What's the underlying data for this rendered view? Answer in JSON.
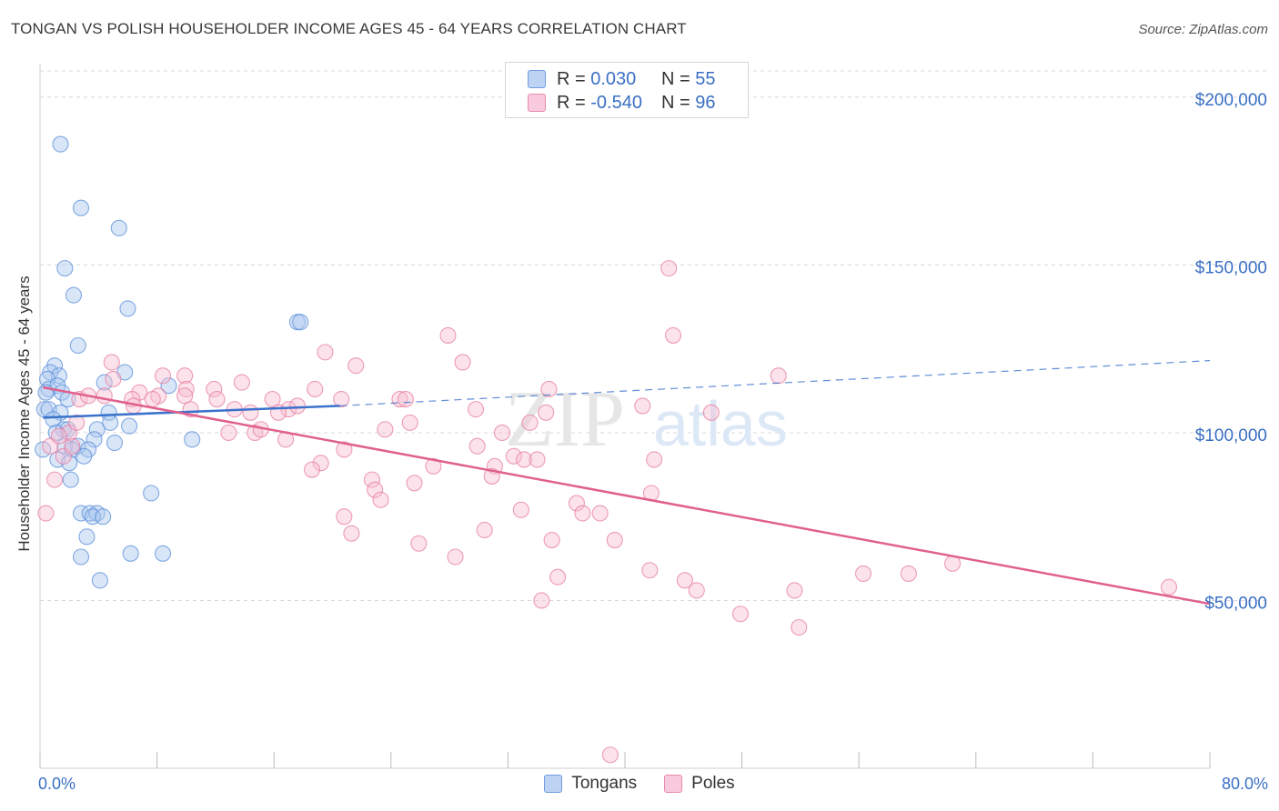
{
  "title": "TONGAN VS POLISH HOUSEHOLDER INCOME AGES 45 - 64 YEARS CORRELATION CHART",
  "source": "Source: ZipAtlas.com",
  "watermark": {
    "zip": "ZIP",
    "atlas": "atlas"
  },
  "legend_top": [
    {
      "r_label": "R =",
      "r_value": "0.030",
      "n_label": "N =",
      "n_value": "55"
    },
    {
      "r_label": "R =",
      "r_value": "-0.540",
      "n_label": "N =",
      "n_value": "96"
    }
  ],
  "colors": {
    "tongans_fill": "#aac8f0",
    "tongans_stroke": "#5b8fd8",
    "tongans_line": "#3a72cc",
    "poles_fill": "#f6bfd2",
    "poles_stroke": "#e77ea2",
    "poles_line": "#e0608e",
    "axis_label": "#3a6fc4",
    "grid": "#d8d8d8"
  },
  "chart_data": {
    "type": "scatter",
    "title": "TONGAN VS POLISH HOUSEHOLDER INCOME AGES 45 - 64 YEARS CORRELATION CHART",
    "xlabel": "",
    "ylabel": "Householder Income Ages 45 - 64 years",
    "xlim": [
      0,
      80
    ],
    "ylim": [
      0,
      210000
    ],
    "x_tick_labels": [
      "0.0%",
      "80.0%"
    ],
    "y_ticks": [
      50000,
      100000,
      150000,
      200000
    ],
    "y_tick_labels": [
      "$50,000",
      "$100,000",
      "$150,000",
      "$200,000"
    ],
    "grid": true,
    "legend_position": "bottom",
    "series": [
      {
        "name": "Tongans",
        "trend": {
          "x": [
            0.2,
            20.5
          ],
          "y": [
            104500,
            108000
          ],
          "dashed_to": [
            80,
            121500
          ]
        },
        "points": [
          [
            1.4,
            186000
          ],
          [
            2.8,
            167000
          ],
          [
            5.4,
            161000
          ],
          [
            1.7,
            149000
          ],
          [
            2.3,
            141000
          ],
          [
            6.0,
            137000
          ],
          [
            17.6,
            133000
          ],
          [
            17.8,
            133000
          ],
          [
            2.6,
            126000
          ],
          [
            1.0,
            120000
          ],
          [
            0.7,
            118000
          ],
          [
            1.3,
            117000
          ],
          [
            5.8,
            118000
          ],
          [
            0.5,
            116000
          ],
          [
            4.4,
            115000
          ],
          [
            0.6,
            113000
          ],
          [
            1.2,
            114000
          ],
          [
            1.5,
            112000
          ],
          [
            8.8,
            114000
          ],
          [
            1.9,
            110000
          ],
          [
            0.3,
            107000
          ],
          [
            0.6,
            107000
          ],
          [
            1.4,
            106000
          ],
          [
            4.7,
            106000
          ],
          [
            4.8,
            103000
          ],
          [
            6.1,
            102000
          ],
          [
            1.6,
            101000
          ],
          [
            1.9,
            101000
          ],
          [
            3.9,
            101000
          ],
          [
            3.7,
            98000
          ],
          [
            10.4,
            98000
          ],
          [
            5.1,
            97000
          ],
          [
            1.7,
            96000
          ],
          [
            2.6,
            96000
          ],
          [
            2.2,
            95000
          ],
          [
            3.3,
            95000
          ],
          [
            0.2,
            95000
          ],
          [
            1.2,
            92000
          ],
          [
            2.0,
            91000
          ],
          [
            2.1,
            86000
          ],
          [
            7.6,
            82000
          ],
          [
            2.8,
            76000
          ],
          [
            3.4,
            76000
          ],
          [
            3.9,
            76000
          ],
          [
            3.6,
            75000
          ],
          [
            4.3,
            75000
          ],
          [
            3.2,
            69000
          ],
          [
            6.2,
            64000
          ],
          [
            8.4,
            64000
          ],
          [
            2.8,
            63000
          ],
          [
            4.1,
            56000
          ],
          [
            0.4,
            112000
          ],
          [
            0.9,
            104000
          ],
          [
            1.1,
            100000
          ],
          [
            3.0,
            93000
          ]
        ]
      },
      {
        "name": "Poles",
        "trend": {
          "x": [
            0.2,
            80
          ],
          "y": [
            113500,
            49000
          ]
        },
        "points": [
          [
            43.0,
            149000
          ],
          [
            43.3,
            129000
          ],
          [
            27.9,
            129000
          ],
          [
            19.5,
            124000
          ],
          [
            28.9,
            121000
          ],
          [
            21.6,
            120000
          ],
          [
            4.9,
            121000
          ],
          [
            8.4,
            117000
          ],
          [
            9.9,
            117000
          ],
          [
            50.5,
            117000
          ],
          [
            5.0,
            116000
          ],
          [
            13.8,
            115000
          ],
          [
            10.0,
            113000
          ],
          [
            11.9,
            113000
          ],
          [
            18.8,
            113000
          ],
          [
            34.8,
            113000
          ],
          [
            6.8,
            112000
          ],
          [
            4.4,
            111000
          ],
          [
            8.1,
            111000
          ],
          [
            6.3,
            110000
          ],
          [
            7.7,
            110000
          ],
          [
            9.9,
            111000
          ],
          [
            12.1,
            110000
          ],
          [
            15.9,
            110000
          ],
          [
            20.6,
            110000
          ],
          [
            24.6,
            110000
          ],
          [
            25.0,
            110000
          ],
          [
            2.7,
            110000
          ],
          [
            6.4,
            108000
          ],
          [
            10.3,
            107000
          ],
          [
            13.3,
            107000
          ],
          [
            17.0,
            107000
          ],
          [
            17.6,
            108000
          ],
          [
            29.8,
            107000
          ],
          [
            41.2,
            108000
          ],
          [
            45.9,
            106000
          ],
          [
            14.4,
            106000
          ],
          [
            16.3,
            106000
          ],
          [
            34.6,
            106000
          ],
          [
            25.3,
            103000
          ],
          [
            33.5,
            103000
          ],
          [
            23.6,
            101000
          ],
          [
            12.9,
            100000
          ],
          [
            14.7,
            100000
          ],
          [
            15.1,
            101000
          ],
          [
            31.6,
            100000
          ],
          [
            16.8,
            98000
          ],
          [
            29.9,
            96000
          ],
          [
            20.8,
            95000
          ],
          [
            32.4,
            93000
          ],
          [
            33.1,
            92000
          ],
          [
            34.0,
            92000
          ],
          [
            42.0,
            92000
          ],
          [
            19.2,
            91000
          ],
          [
            26.9,
            90000
          ],
          [
            18.6,
            89000
          ],
          [
            31.1,
            90000
          ],
          [
            30.9,
            87000
          ],
          [
            22.7,
            86000
          ],
          [
            25.6,
            85000
          ],
          [
            22.9,
            83000
          ],
          [
            23.3,
            80000
          ],
          [
            41.8,
            82000
          ],
          [
            36.7,
            79000
          ],
          [
            37.1,
            76000
          ],
          [
            20.8,
            75000
          ],
          [
            32.9,
            77000
          ],
          [
            38.3,
            76000
          ],
          [
            30.4,
            71000
          ],
          [
            21.3,
            70000
          ],
          [
            35.0,
            68000
          ],
          [
            39.3,
            68000
          ],
          [
            25.9,
            67000
          ],
          [
            28.4,
            63000
          ],
          [
            41.7,
            59000
          ],
          [
            44.1,
            56000
          ],
          [
            56.3,
            58000
          ],
          [
            59.4,
            58000
          ],
          [
            62.4,
            61000
          ],
          [
            77.2,
            54000
          ],
          [
            35.4,
            57000
          ],
          [
            44.9,
            53000
          ],
          [
            51.6,
            53000
          ],
          [
            47.9,
            46000
          ],
          [
            34.3,
            50000
          ],
          [
            51.9,
            42000
          ],
          [
            39.0,
            4000
          ],
          [
            2.0,
            100000
          ],
          [
            2.5,
            103000
          ],
          [
            0.7,
            96000
          ],
          [
            1.6,
            93000
          ],
          [
            1.0,
            86000
          ],
          [
            0.4,
            76000
          ],
          [
            1.3,
            99000
          ],
          [
            3.3,
            111000
          ],
          [
            2.2,
            96000
          ]
        ]
      }
    ]
  },
  "bottom_legend": [
    {
      "label": "Tongans"
    },
    {
      "label": "Poles"
    }
  ]
}
